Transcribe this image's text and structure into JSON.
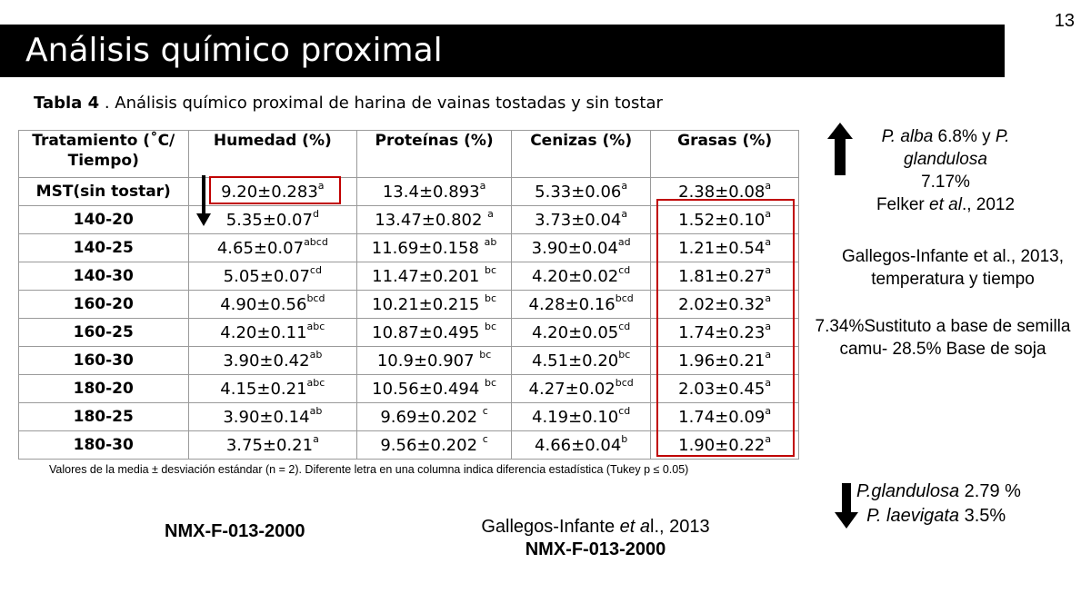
{
  "slide_number": "13",
  "title": "Análisis químico proximal",
  "caption": {
    "label": "Tabla 4",
    "text": " . Análisis químico proximal de harina de vainas tostadas y sin tostar"
  },
  "table": {
    "headers": [
      "Tratamiento (˚C/ Tiempo)",
      "Humedad (%)",
      "Proteínas (%)",
      "Cenizas (%)",
      "Grasas (%)"
    ],
    "rows": [
      {
        "trt": "MST(sin tostar)",
        "hum": "9.20±0.283",
        "hum_s": "a",
        "pro": "13.4±0.893",
        "pro_s": "a",
        "cen": "5.33±0.06",
        "cen_s": "a",
        "gra": "2.38±0.08",
        "gra_s": "a"
      },
      {
        "trt": "140-20",
        "hum": "5.35±0.07",
        "hum_s": "d",
        "pro": "13.47±0.802 ",
        "pro_s": "a",
        "cen": "3.73±0.04",
        "cen_s": "a",
        "gra": "1.52±0.10",
        "gra_s": "a"
      },
      {
        "trt": "140-25",
        "hum": "4.65±0.07",
        "hum_s": "abcd",
        "pro": "11.69±0.158 ",
        "pro_s": "ab",
        "cen": "3.90±0.04",
        "cen_s": "ad",
        "gra": "1.21±0.54",
        "gra_s": "a"
      },
      {
        "trt": "140-30",
        "hum": "5.05±0.07",
        "hum_s": "cd",
        "pro": "11.47±0.201 ",
        "pro_s": "bc",
        "cen": "4.20±0.02",
        "cen_s": "cd",
        "gra": "1.81±0.27",
        "gra_s": "a"
      },
      {
        "trt": "160-20",
        "hum": "4.90±0.56",
        "hum_s": "bcd",
        "pro": "10.21±0.215 ",
        "pro_s": "bc",
        "cen": "4.28±0.16",
        "cen_s": "bcd",
        "gra": "2.02±0.32",
        "gra_s": "a"
      },
      {
        "trt": "160-25",
        "hum": "4.20±0.11",
        "hum_s": "abc",
        "pro": "10.87±0.495 ",
        "pro_s": "bc",
        "cen": "4.20±0.05",
        "cen_s": "cd",
        "gra": "1.74±0.23",
        "gra_s": "a"
      },
      {
        "trt": "160-30",
        "hum": "3.90±0.42",
        "hum_s": "ab",
        "pro": "10.9±0.907 ",
        "pro_s": "bc",
        "cen": "4.51±0.20",
        "cen_s": "bc",
        "gra": "1.96±0.21",
        "gra_s": "a"
      },
      {
        "trt": "180-20",
        "hum": "4.15±0.21",
        "hum_s": "abc",
        "pro": "10.56±0.494 ",
        "pro_s": "bc",
        "cen": "4.27±0.02",
        "cen_s": "bcd",
        "gra": "2.03±0.45",
        "gra_s": "a"
      },
      {
        "trt": "180-25",
        "hum": "3.90±0.14",
        "hum_s": "ab",
        "pro": "9.69±0.202 ",
        "pro_s": "c",
        "cen": "4.19±0.10",
        "cen_s": "cd",
        "gra": "1.74±0.09",
        "gra_s": "a"
      },
      {
        "trt": "180-30",
        "hum": "3.75±0.21",
        "hum_s": "a",
        "pro": "9.56±0.202 ",
        "pro_s": "c",
        "cen": "4.66±0.04",
        "cen_s": "b",
        "gra": "1.90±0.22",
        "gra_s": "a"
      }
    ]
  },
  "footnote": "Valores de la media ± desviación estándar (n = 2). Diferente letra en una columna indica diferencia estadística (Tukey p ≤ 0.05)",
  "side_notes": {
    "ref1_a": "P. alba",
    "ref1_b": " 6.8% y ",
    "ref1_c": "P. glandulosa",
    "ref1_d": "7.17%",
    "ref1_e": "Felker ",
    "ref1_f": "et al",
    "ref1_g": "., 2012",
    "ref2_line1": "Gallegos-Infante et al., 2013,",
    "ref2_line2": "temperatura y tiempo",
    "ref3": "7.34%Sustituto a base de semilla camu- 28.5% Base de soja",
    "gland_a": "P.glandulosa",
    "gland_b": " 2.79 %",
    "gland_c": "P. laevigata",
    "gland_d": " 3.5%"
  },
  "bottom": {
    "std_left": "NMX-F-013-2000",
    "ref_a": "Gallegos-Infante ",
    "ref_b": "et a",
    "ref_c": "l., 2013",
    "std_center": "NMX-F-013-2000"
  },
  "colors": {
    "title_bar": "#000000",
    "highlight_box": "#c00000"
  }
}
